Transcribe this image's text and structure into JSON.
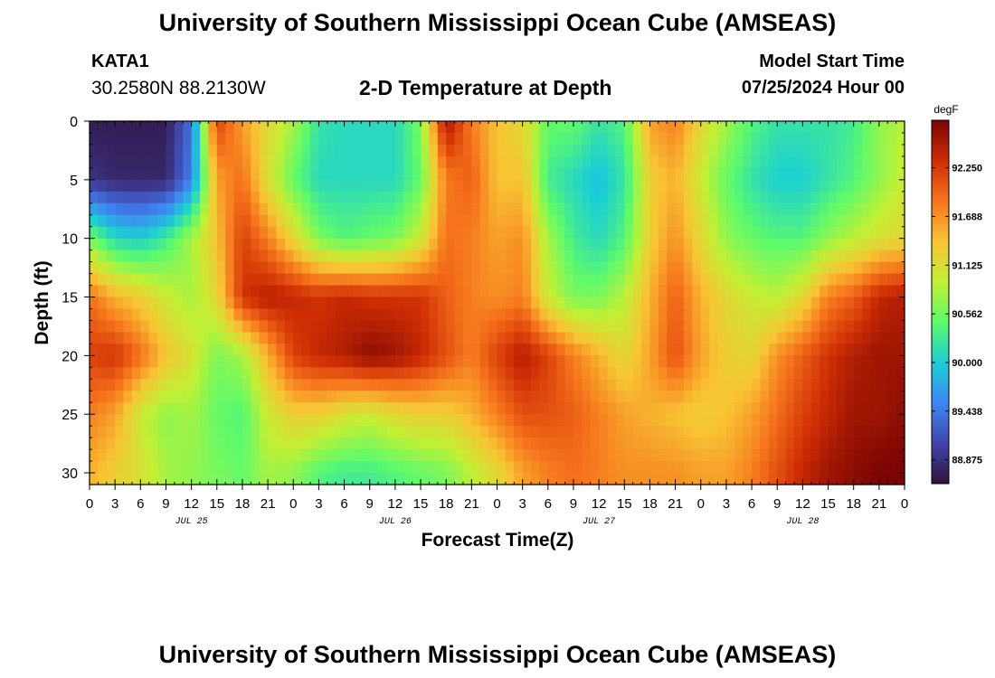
{
  "header": {
    "title": "University of Southern Mississippi Ocean Cube (AMSEAS)",
    "station_id": "KATA1",
    "station_coords": "30.2580N  88.2130W",
    "plot_title": "2-D Temperature at Depth",
    "model_start_label": "Model Start Time",
    "model_start_value": "07/25/2024 Hour 00"
  },
  "footer": {
    "title": "University of Southern Mississippi Ocean Cube (AMSEAS)"
  },
  "colors": {
    "axis": "#000000",
    "background": "#ffffff"
  },
  "chart_data": {
    "type": "heatmap",
    "title": "2-D Temperature at Depth",
    "xlabel": "Forecast Time(Z)",
    "ylabel": "Depth (ft)",
    "x_tick_labels": [
      "0",
      "3",
      "6",
      "9",
      "12",
      "15",
      "18",
      "21",
      "0",
      "3",
      "6",
      "9",
      "12",
      "15",
      "18",
      "21",
      "0",
      "3",
      "6",
      "9",
      "12",
      "15",
      "18",
      "21",
      "0",
      "3",
      "6",
      "9",
      "12",
      "15",
      "18",
      "21",
      "0"
    ],
    "date_labels": [
      "JUL 25",
      "JUL 26",
      "JUL 27",
      "JUL 28"
    ],
    "xlim_hours": [
      0,
      96
    ],
    "ylim_ft": [
      0,
      31
    ],
    "y_ticks": [
      0,
      5,
      10,
      15,
      20,
      25,
      30
    ],
    "colorbar": {
      "unit": "degF",
      "range": [
        88.6,
        92.8
      ],
      "ticks": [
        "92.250",
        "91.688",
        "91.125",
        "90.562",
        "90.000",
        "89.438",
        "88.875"
      ],
      "colormap": [
        "#30123b",
        "#4046aa",
        "#3f86f4",
        "#1bcfd4",
        "#5dfa6c",
        "#c2f034",
        "#f8c434",
        "#f6731c",
        "#ce2d04",
        "#7a0403"
      ]
    },
    "times_hours": [
      0,
      3,
      6,
      9,
      12,
      15,
      18,
      21,
      24,
      27,
      30,
      33,
      36,
      39,
      42,
      45,
      48,
      51,
      54,
      57,
      60,
      63,
      66,
      69,
      72,
      75,
      78,
      81,
      84,
      87,
      90,
      93,
      96
    ],
    "depths_ft": [
      0,
      5,
      10,
      15,
      20,
      25,
      30
    ],
    "temperature_degF": [
      [
        88.7,
        88.7,
        88.7,
        88.7,
        89.4,
        92.2,
        91.6,
        91.2,
        90.8,
        90.2,
        90.1,
        90.1,
        90.1,
        90.6,
        92.6,
        91.8,
        91.4,
        91.2,
        90.5,
        90.5,
        90.2,
        90.4,
        91.6,
        91.8,
        91.2,
        90.8,
        90.4,
        90.2,
        90.2,
        90.2,
        90.3,
        90.7,
        90.9
      ],
      [
        88.9,
        88.8,
        88.8,
        88.8,
        89.5,
        91.6,
        91.9,
        91.1,
        90.5,
        90.1,
        90.1,
        90.1,
        90.1,
        90.5,
        91.8,
        92.0,
        91.4,
        91.4,
        90.3,
        90.1,
        89.9,
        90.2,
        91.3,
        91.5,
        91.0,
        90.5,
        90.2,
        90.0,
        90.0,
        90.2,
        90.4,
        90.7,
        91.0
      ],
      [
        90.6,
        90.1,
        90.0,
        90.3,
        90.8,
        91.4,
        92.2,
        91.8,
        91.2,
        90.6,
        90.4,
        90.5,
        90.6,
        91.0,
        91.9,
        91.8,
        91.6,
        91.7,
        90.8,
        90.3,
        90.1,
        90.4,
        91.3,
        91.7,
        91.2,
        90.7,
        90.5,
        90.4,
        90.4,
        90.7,
        90.9,
        91.1,
        91.2
      ],
      [
        91.9,
        91.5,
        91.3,
        91.0,
        90.8,
        91.2,
        92.3,
        92.5,
        92.4,
        92.3,
        92.4,
        92.3,
        92.3,
        92.3,
        92.0,
        91.8,
        91.7,
        91.8,
        91.0,
        90.6,
        90.6,
        90.9,
        91.5,
        92.0,
        91.5,
        91.2,
        91.0,
        90.9,
        91.2,
        91.8,
        92.0,
        92.4,
        92.5
      ],
      [
        92.2,
        92.3,
        91.9,
        91.4,
        91.1,
        90.6,
        90.8,
        91.5,
        92.2,
        92.4,
        92.5,
        92.7,
        92.6,
        92.4,
        92.1,
        91.8,
        92.2,
        92.5,
        92.2,
        91.8,
        91.5,
        91.2,
        91.6,
        92.1,
        91.6,
        91.3,
        91.2,
        91.7,
        92.0,
        92.3,
        92.5,
        92.6,
        92.6
      ],
      [
        91.8,
        91.6,
        91.0,
        90.7,
        90.8,
        90.5,
        90.4,
        91.0,
        91.3,
        91.3,
        91.1,
        91.0,
        91.2,
        91.3,
        91.3,
        91.5,
        91.8,
        92.1,
        92.1,
        92.0,
        91.8,
        91.6,
        91.5,
        91.4,
        91.3,
        91.4,
        91.6,
        91.9,
        92.2,
        92.4,
        92.6,
        92.6,
        92.7
      ],
      [
        91.5,
        91.3,
        91.1,
        90.8,
        90.7,
        90.6,
        90.5,
        90.8,
        90.7,
        90.4,
        90.3,
        90.3,
        90.4,
        90.5,
        90.6,
        90.9,
        91.2,
        91.6,
        91.8,
        91.9,
        91.8,
        91.7,
        91.7,
        91.7,
        91.6,
        91.6,
        91.8,
        92.1,
        92.4,
        92.6,
        92.7,
        92.8,
        92.8
      ]
    ]
  }
}
